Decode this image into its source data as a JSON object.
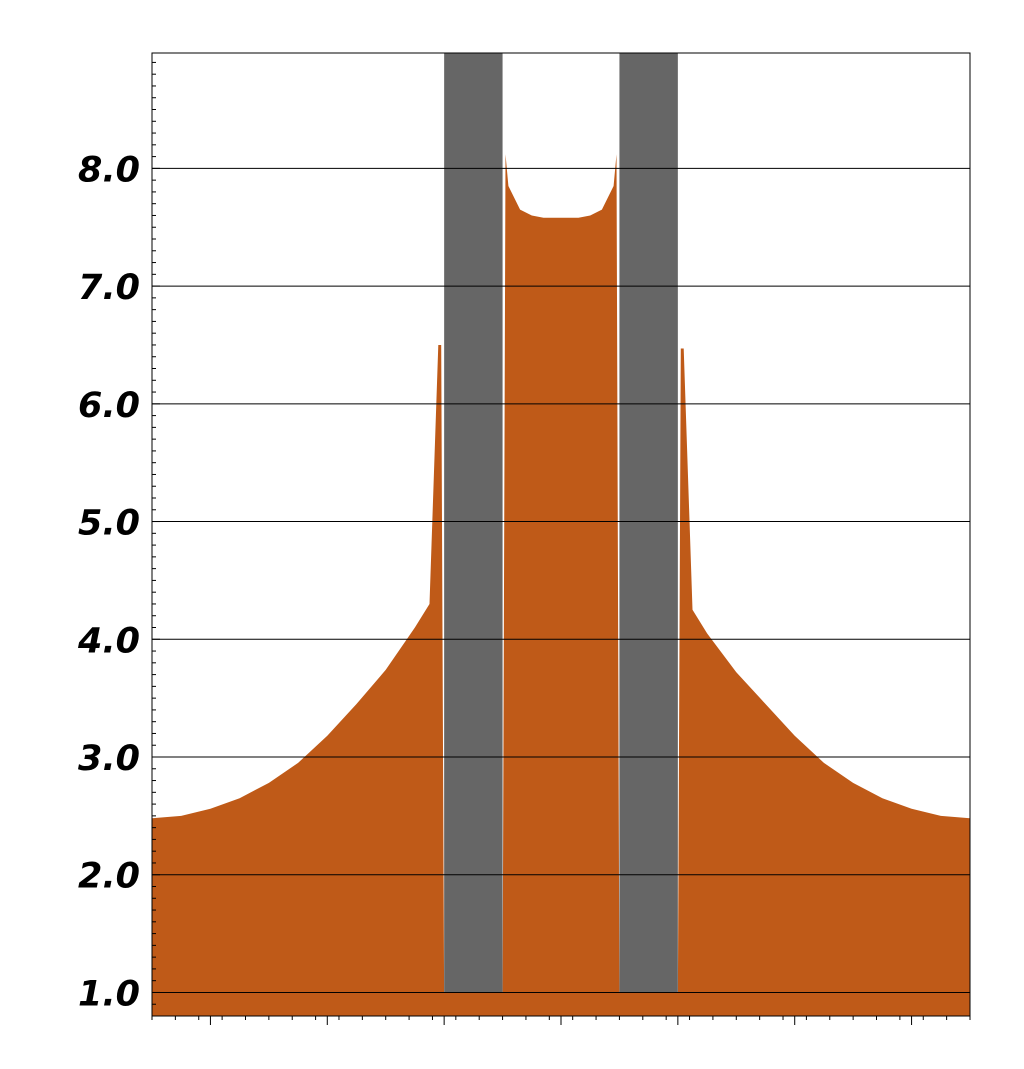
{
  "chart_data": {
    "type": "area",
    "title": "",
    "xlabel": "",
    "ylabel": "",
    "ylim": [
      0.8,
      8.98
    ],
    "xlim": [
      -7,
      7
    ],
    "grid": "horizontal",
    "y_ticks": [
      {
        "value": 1.0,
        "label": "1.0"
      },
      {
        "value": 2.0,
        "label": "2.0"
      },
      {
        "value": 3.0,
        "label": "3.0"
      },
      {
        "value": 4.0,
        "label": "4.0"
      },
      {
        "value": 5.0,
        "label": "5.0"
      },
      {
        "value": 6.0,
        "label": "6.0"
      },
      {
        "value": 7.0,
        "label": "7.0"
      },
      {
        "value": 8.0,
        "label": "8.0"
      }
    ],
    "x_major_ticks": [
      -6,
      -4,
      -2,
      0,
      2,
      4,
      6
    ],
    "series": [
      {
        "color": "#bf5a18",
        "x": [
          -7.0,
          -6.5,
          -6.0,
          -5.5,
          -5.0,
          -4.5,
          -4.0,
          -3.5,
          -3.0,
          -2.5,
          -2.25,
          -2.1,
          -2.05,
          -2.0,
          -1.0,
          -0.95,
          -0.9,
          -0.7,
          -0.5,
          -0.3,
          0.0,
          0.3,
          0.5,
          0.7,
          0.9,
          0.95,
          1.0,
          2.0,
          2.05,
          2.1,
          2.25,
          2.5,
          3.0,
          3.5,
          4.0,
          4.5,
          5.0,
          5.5,
          6.0,
          6.5,
          7.0
        ],
        "y": [
          2.48,
          2.5,
          2.56,
          2.65,
          2.78,
          2.95,
          3.18,
          3.45,
          3.74,
          4.1,
          4.3,
          6.5,
          6.5,
          1.0,
          1.0,
          8.12,
          7.85,
          7.65,
          7.6,
          7.58,
          7.58,
          7.58,
          7.6,
          7.65,
          7.85,
          8.12,
          1.0,
          1.0,
          6.47,
          6.47,
          4.25,
          4.05,
          3.72,
          3.45,
          3.18,
          2.95,
          2.78,
          2.65,
          2.56,
          2.5,
          2.48
        ]
      }
    ],
    "obstacles": [
      {
        "x_range": [
          -2.0,
          -1.0
        ],
        "y_range": [
          1.0,
          8.98
        ],
        "color": "#666666"
      },
      {
        "x_range": [
          1.0,
          2.0
        ],
        "y_range": [
          1.0,
          8.98
        ],
        "color": "#666666"
      }
    ]
  }
}
